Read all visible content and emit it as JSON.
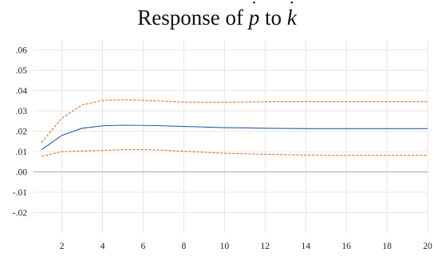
{
  "chart_data": {
    "type": "line",
    "title": {
      "prefix": "Response of ",
      "response_var": "p",
      "middle": " to ",
      "impulse_var": "k",
      "dot": "˙"
    },
    "xlabel": "",
    "ylabel": "",
    "xlim": [
      0.6,
      20
    ],
    "ylim": [
      -0.03,
      0.065
    ],
    "x": [
      1,
      2,
      3,
      4,
      5,
      6,
      7,
      8,
      9,
      10,
      11,
      12,
      13,
      14,
      15,
      16,
      17,
      18,
      19,
      20
    ],
    "x_ticks": [
      2,
      4,
      6,
      8,
      10,
      12,
      14,
      16,
      18,
      20
    ],
    "x_tick_labels": [
      "2",
      "4",
      "6",
      "8",
      "10",
      "12",
      "14",
      "16",
      "18",
      "20"
    ],
    "y_ticks": [
      -0.02,
      -0.01,
      0.0,
      0.01,
      0.02,
      0.03,
      0.04,
      0.05,
      0.06
    ],
    "y_tick_labels": [
      "-.02",
      "-.01",
      ".00",
      ".01",
      ".02",
      ".03",
      ".04",
      ".05",
      ".06"
    ],
    "grid": true,
    "zero_line": true,
    "legend": "none",
    "series": [
      {
        "values": [
          0.011,
          0.018,
          0.0215,
          0.0227,
          0.023,
          0.0229,
          0.0227,
          0.0224,
          0.0221,
          0.0218,
          0.0217,
          0.0215,
          0.0214,
          0.0213,
          0.0213,
          0.0213,
          0.0213,
          0.0213,
          0.0213,
          0.0213
        ],
        "color": "#2a5ba8",
        "style": "solid"
      },
      {
        "values": [
          0.0145,
          0.0265,
          0.033,
          0.0352,
          0.0356,
          0.0352,
          0.0348,
          0.0344,
          0.0343,
          0.0343,
          0.0344,
          0.0345,
          0.0345,
          0.0345,
          0.0345,
          0.0345,
          0.0345,
          0.0345,
          0.0345,
          0.0345
        ],
        "color": "#e06a1e",
        "style": "dashed"
      },
      {
        "values": [
          0.0077,
          0.01,
          0.0103,
          0.0106,
          0.011,
          0.011,
          0.0107,
          0.0102,
          0.0097,
          0.0092,
          0.0089,
          0.0087,
          0.0085,
          0.0083,
          0.0082,
          0.0082,
          0.0082,
          0.0082,
          0.0082,
          0.0082
        ],
        "color": "#e06a1e",
        "style": "dashed"
      }
    ]
  }
}
